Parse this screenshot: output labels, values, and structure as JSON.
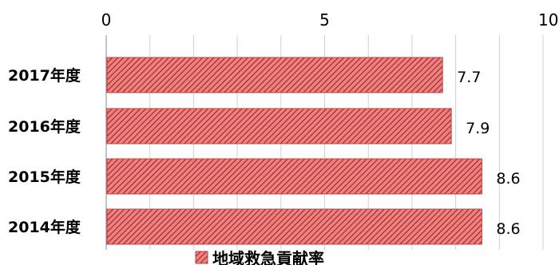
{
  "chart_data": {
    "type": "bar",
    "orientation": "horizontal",
    "categories": [
      "2017年度",
      "2016年度",
      "2015年度",
      "2014年度"
    ],
    "series": [
      {
        "name": "地域救急貢献率",
        "values": [
          7.7,
          7.9,
          8.6,
          8.6
        ]
      }
    ],
    "xlim": [
      0,
      10
    ],
    "x_ticks": [
      "0",
      "5",
      "10"
    ],
    "x_axis_position": "top",
    "grid": true,
    "legend": "bottom",
    "colors": {
      "bar_fill": "#f08080",
      "bar_hatch": "#8b2020"
    }
  }
}
